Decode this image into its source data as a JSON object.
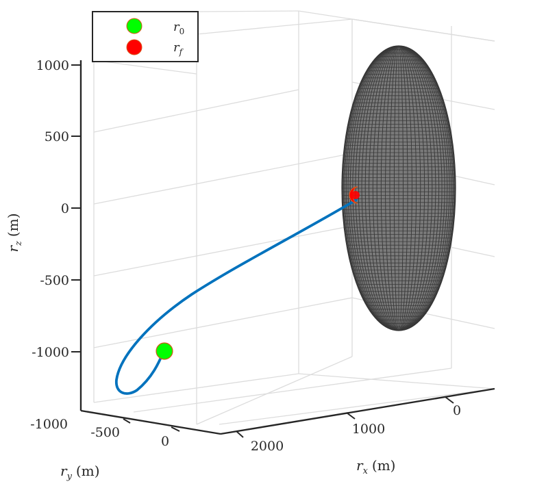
{
  "chart_data": {
    "type": "line3d",
    "title": "",
    "axes": {
      "x": {
        "label": "r",
        "sub": "x",
        "unit": "(m)",
        "ticks": [
          "2000",
          "1000",
          "0"
        ]
      },
      "y": {
        "label": "r",
        "sub": "y",
        "unit": "(m)",
        "ticks": [
          "-500",
          "0"
        ]
      },
      "z": {
        "label": "r",
        "sub": "z",
        "unit": "(m)",
        "ticks": [
          "1000",
          "500",
          "0",
          "-500",
          "-1000"
        ]
      },
      "y_corner_tick": "-1000"
    },
    "grid": true,
    "legend": {
      "position": "top-left",
      "entries": [
        {
          "symbol": "r",
          "sub": "0",
          "color": "#00ff00"
        },
        {
          "symbol": "r",
          "sub": "f",
          "color": "#ff0000"
        }
      ]
    },
    "series": [
      {
        "type": "trajectory",
        "color": "#0072bd",
        "points_screen": []
      }
    ],
    "markers": {
      "start_color": "#00ff00",
      "end_color": "#ff0000",
      "edge_color": "#d95319"
    },
    "target_body": {
      "type": "ellipsoid",
      "color": "#4d4d4d",
      "mesh": true
    }
  }
}
